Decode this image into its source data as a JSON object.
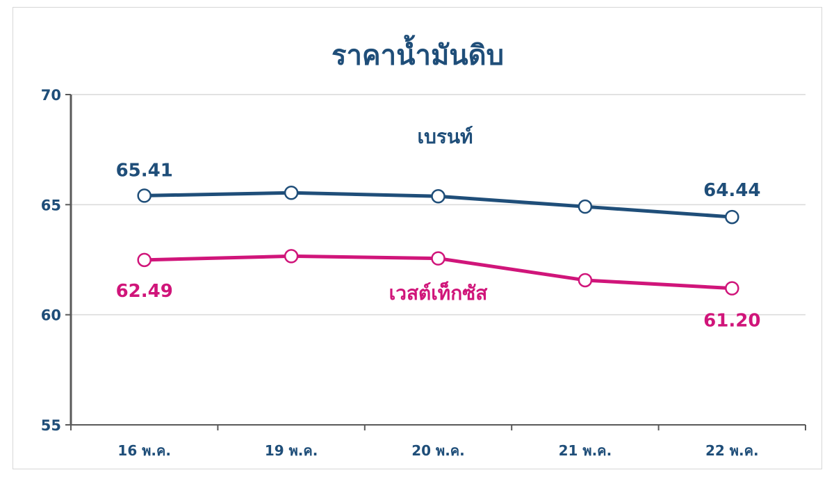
{
  "chart_data": {
    "type": "line",
    "title": "ราคาน้ำมันดิบ",
    "categories": [
      "16 พ.ค.",
      "19 พ.ค.",
      "20 พ.ค.",
      "21 พ.ค.",
      "22 พ.ค."
    ],
    "ylim": [
      55,
      70
    ],
    "yticks": [
      55,
      60,
      65,
      70
    ],
    "grid": true,
    "legend": "inline labels",
    "series": [
      {
        "name": "เบรนท์",
        "color": "#1f4e79",
        "values": [
          65.41,
          65.54,
          65.38,
          64.91,
          64.44
        ],
        "data_labels": [
          {
            "index": 0,
            "text": "65.41"
          },
          {
            "index": 4,
            "text": "64.44"
          }
        ]
      },
      {
        "name": "เวสต์เท็กซัส",
        "color": "#d0157a",
        "values": [
          62.49,
          62.66,
          62.56,
          61.57,
          61.2
        ],
        "data_labels": [
          {
            "index": 0,
            "text": "62.49"
          },
          {
            "index": 4,
            "text": "61.20"
          }
        ]
      }
    ]
  }
}
